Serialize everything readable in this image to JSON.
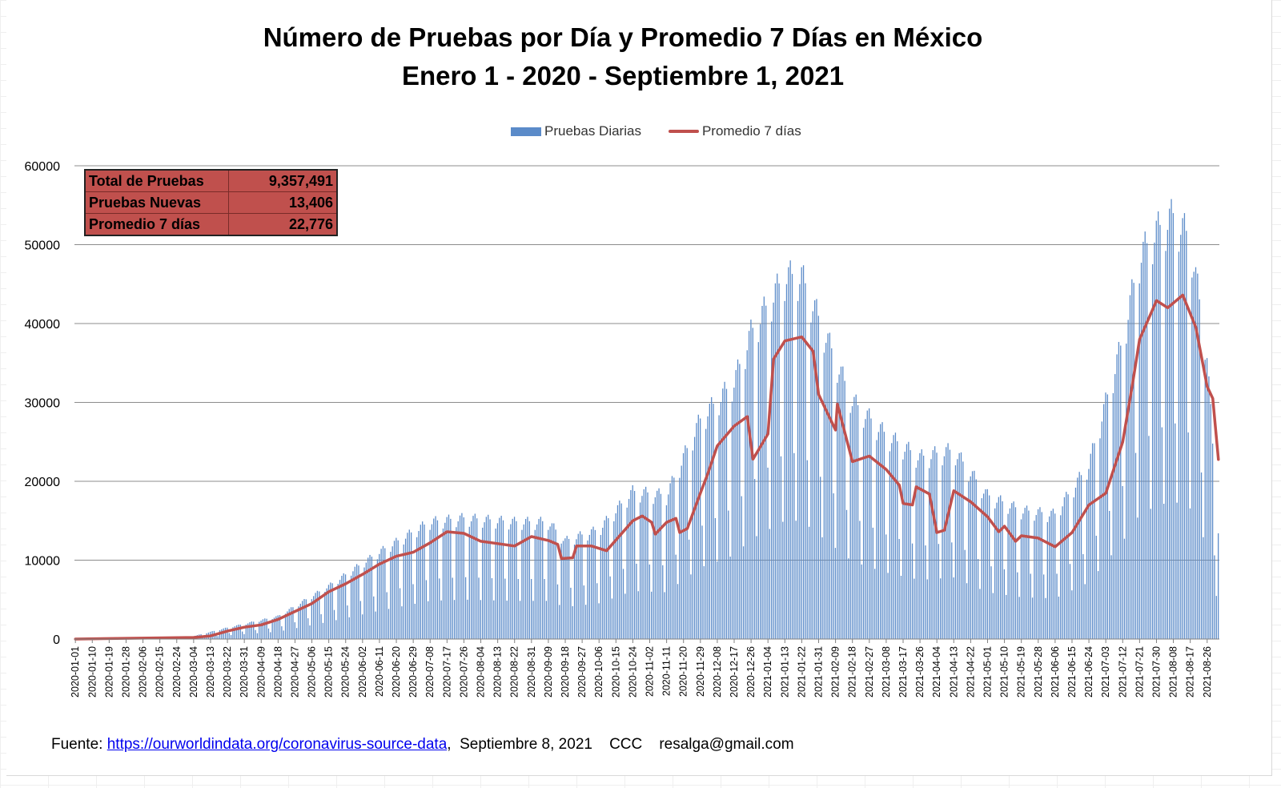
{
  "title_line1": "Número de Pruebas por Día  y Promedio 7 Días en México",
  "title_line2": "Enero 1 - 2020 - Septiembre 1, 2021",
  "legend": {
    "bars": "Pruebas Diarias",
    "line": "Promedio 7 días"
  },
  "summary": [
    {
      "label": "Total de Pruebas",
      "value": "9,357,491"
    },
    {
      "label": "Pruebas Nuevas",
      "value": "13,406"
    },
    {
      "label": "Promedio 7 días",
      "value": "22,776"
    }
  ],
  "footer": {
    "prefix": "Fuente:",
    "link": "https://ourworldindata.org/coronavirus-source-data",
    "rest": ",  Septiembre 8, 2021    CCC    resalga@gmail.com"
  },
  "colors": {
    "bars": "#5b8bc9",
    "line": "#c0504d",
    "summary_bg": "#c0504d"
  },
  "chart_data": {
    "type": "bar",
    "xlabel": "",
    "ylabel": "",
    "ylim": [
      0,
      60000
    ],
    "y_ticks": [
      0,
      10000,
      20000,
      30000,
      40000,
      50000,
      60000
    ],
    "grid": true,
    "legend_position": "top",
    "x_start": "2020-01-01",
    "x_end": "2021-09-01",
    "x_tick_labels": [
      "2020-01-01",
      "2020-01-10",
      "2020-01-19",
      "2020-01-28",
      "2020-02-06",
      "2020-02-15",
      "2020-02-24",
      "2020-03-04",
      "2020-03-13",
      "2020-03-22",
      "2020-03-31",
      "2020-04-09",
      "2020-04-18",
      "2020-04-27",
      "2020-05-06",
      "2020-05-15",
      "2020-05-24",
      "2020-06-02",
      "2020-06-11",
      "2020-06-20",
      "2020-06-29",
      "2020-07-08",
      "2020-07-17",
      "2020-07-26",
      "2020-08-04",
      "2020-08-13",
      "2020-08-22",
      "2020-08-31",
      "2020-09-09",
      "2020-09-18",
      "2020-09-27",
      "2020-10-06",
      "2020-10-15",
      "2020-10-24",
      "2020-11-02",
      "2020-11-11",
      "2020-11-20",
      "2020-11-29",
      "2020-12-08",
      "2020-12-17",
      "2020-12-26",
      "2021-01-04",
      "2021-01-13",
      "2021-01-22",
      "2021-01-31",
      "2021-02-09",
      "2021-02-18",
      "2021-02-27",
      "2021-03-08",
      "2021-03-17",
      "2021-03-26",
      "2021-04-04",
      "2021-04-13",
      "2021-04-22",
      "2021-05-01",
      "2021-05-10",
      "2021-05-19",
      "2021-05-28",
      "2021-06-06",
      "2021-06-15",
      "2021-06-24",
      "2021-07-03",
      "2021-07-12",
      "2021-07-21",
      "2021-07-30",
      "2021-08-08",
      "2021-08-17",
      "2021-08-26"
    ],
    "series": [
      {
        "name": "Pruebas Diarias",
        "type": "bar",
        "weekly_pattern": [
          1.0,
          1.05,
          1.1,
          1.12,
          1.08,
          0.55,
          0.35
        ],
        "approx_envelope": [
          {
            "date": "2020-01-01",
            "value": 0
          },
          {
            "date": "2020-03-01",
            "value": 200
          },
          {
            "date": "2020-03-22",
            "value": 1500
          },
          {
            "date": "2020-04-18",
            "value": 3000
          },
          {
            "date": "2020-05-15",
            "value": 7000
          },
          {
            "date": "2020-06-11",
            "value": 11500
          },
          {
            "date": "2020-07-08",
            "value": 15500
          },
          {
            "date": "2020-07-26",
            "value": 16000
          },
          {
            "date": "2020-08-22",
            "value": 15500
          },
          {
            "date": "2020-09-09",
            "value": 15500
          },
          {
            "date": "2020-09-18",
            "value": 13000
          },
          {
            "date": "2020-10-06",
            "value": 14500
          },
          {
            "date": "2020-10-24",
            "value": 19500
          },
          {
            "date": "2020-11-11",
            "value": 19000
          },
          {
            "date": "2020-11-29",
            "value": 29000
          },
          {
            "date": "2020-12-17",
            "value": 34000
          },
          {
            "date": "2020-12-26",
            "value": 40500
          },
          {
            "date": "2021-01-13",
            "value": 48000
          },
          {
            "date": "2021-01-22",
            "value": 48000
          },
          {
            "date": "2021-02-09",
            "value": 37000
          },
          {
            "date": "2021-02-18",
            "value": 31500
          },
          {
            "date": "2021-03-08",
            "value": 27000
          },
          {
            "date": "2021-03-26",
            "value": 24000
          },
          {
            "date": "2021-04-13",
            "value": 25000
          },
          {
            "date": "2021-05-01",
            "value": 19000
          },
          {
            "date": "2021-05-19",
            "value": 17000
          },
          {
            "date": "2021-06-06",
            "value": 16500
          },
          {
            "date": "2021-06-24",
            "value": 23000
          },
          {
            "date": "2021-07-12",
            "value": 39500
          },
          {
            "date": "2021-07-21",
            "value": 50500
          },
          {
            "date": "2021-07-30",
            "value": 54000
          },
          {
            "date": "2021-08-08",
            "value": 56000
          },
          {
            "date": "2021-08-17",
            "value": 53000
          },
          {
            "date": "2021-08-26",
            "value": 38000
          },
          {
            "date": "2021-09-01",
            "value": 13406
          }
        ]
      },
      {
        "name": "Promedio 7 días",
        "type": "line",
        "points": [
          {
            "date": "2020-01-01",
            "value": 0
          },
          {
            "date": "2020-03-04",
            "value": 200
          },
          {
            "date": "2020-03-13",
            "value": 400
          },
          {
            "date": "2020-03-22",
            "value": 1000
          },
          {
            "date": "2020-03-31",
            "value": 1500
          },
          {
            "date": "2020-04-09",
            "value": 1800
          },
          {
            "date": "2020-04-18",
            "value": 2500
          },
          {
            "date": "2020-04-27",
            "value": 3500
          },
          {
            "date": "2020-05-06",
            "value": 4500
          },
          {
            "date": "2020-05-15",
            "value": 6000
          },
          {
            "date": "2020-05-24",
            "value": 7000
          },
          {
            "date": "2020-06-02",
            "value": 8200
          },
          {
            "date": "2020-06-11",
            "value": 9500
          },
          {
            "date": "2020-06-20",
            "value": 10500
          },
          {
            "date": "2020-06-29",
            "value": 11000
          },
          {
            "date": "2020-07-08",
            "value": 12200
          },
          {
            "date": "2020-07-17",
            "value": 13600
          },
          {
            "date": "2020-07-26",
            "value": 13400
          },
          {
            "date": "2020-08-04",
            "value": 12400
          },
          {
            "date": "2020-08-13",
            "value": 12100
          },
          {
            "date": "2020-08-22",
            "value": 11800
          },
          {
            "date": "2020-08-31",
            "value": 13000
          },
          {
            "date": "2020-09-09",
            "value": 12500
          },
          {
            "date": "2020-09-14",
            "value": 12000
          },
          {
            "date": "2020-09-16",
            "value": 10200
          },
          {
            "date": "2020-09-22",
            "value": 10300
          },
          {
            "date": "2020-09-24",
            "value": 11800
          },
          {
            "date": "2020-10-02",
            "value": 11800
          },
          {
            "date": "2020-10-10",
            "value": 11200
          },
          {
            "date": "2020-10-24",
            "value": 15000
          },
          {
            "date": "2020-10-29",
            "value": 15600
          },
          {
            "date": "2020-11-03",
            "value": 14800
          },
          {
            "date": "2020-11-05",
            "value": 13300
          },
          {
            "date": "2020-11-11",
            "value": 14800
          },
          {
            "date": "2020-11-16",
            "value": 15300
          },
          {
            "date": "2020-11-18",
            "value": 13500
          },
          {
            "date": "2020-11-22",
            "value": 14000
          },
          {
            "date": "2020-11-29",
            "value": 18500
          },
          {
            "date": "2020-12-03",
            "value": 21000
          },
          {
            "date": "2020-12-08",
            "value": 24500
          },
          {
            "date": "2020-12-17",
            "value": 27000
          },
          {
            "date": "2020-12-24",
            "value": 28200
          },
          {
            "date": "2020-12-27",
            "value": 22800
          },
          {
            "date": "2021-01-04",
            "value": 26000
          },
          {
            "date": "2021-01-07",
            "value": 35500
          },
          {
            "date": "2021-01-13",
            "value": 37800
          },
          {
            "date": "2021-01-22",
            "value": 38300
          },
          {
            "date": "2021-01-28",
            "value": 36500
          },
          {
            "date": "2021-01-31",
            "value": 31000
          },
          {
            "date": "2021-02-09",
            "value": 26500
          },
          {
            "date": "2021-02-10",
            "value": 29800
          },
          {
            "date": "2021-02-18",
            "value": 22500
          },
          {
            "date": "2021-02-27",
            "value": 23200
          },
          {
            "date": "2021-03-08",
            "value": 21500
          },
          {
            "date": "2021-03-15",
            "value": 19500
          },
          {
            "date": "2021-03-17",
            "value": 17200
          },
          {
            "date": "2021-03-22",
            "value": 17000
          },
          {
            "date": "2021-03-24",
            "value": 19300
          },
          {
            "date": "2021-03-31",
            "value": 18400
          },
          {
            "date": "2021-04-04",
            "value": 13500
          },
          {
            "date": "2021-04-08",
            "value": 13800
          },
          {
            "date": "2021-04-13",
            "value": 18800
          },
          {
            "date": "2021-04-22",
            "value": 17400
          },
          {
            "date": "2021-05-01",
            "value": 15500
          },
          {
            "date": "2021-05-07",
            "value": 13600
          },
          {
            "date": "2021-05-10",
            "value": 14300
          },
          {
            "date": "2021-05-16",
            "value": 12400
          },
          {
            "date": "2021-05-19",
            "value": 13100
          },
          {
            "date": "2021-05-28",
            "value": 12800
          },
          {
            "date": "2021-06-06",
            "value": 11700
          },
          {
            "date": "2021-06-15",
            "value": 13500
          },
          {
            "date": "2021-06-24",
            "value": 17000
          },
          {
            "date": "2021-07-03",
            "value": 18500
          },
          {
            "date": "2021-07-12",
            "value": 25000
          },
          {
            "date": "2021-07-17",
            "value": 32000
          },
          {
            "date": "2021-07-21",
            "value": 38000
          },
          {
            "date": "2021-07-30",
            "value": 42900
          },
          {
            "date": "2021-08-05",
            "value": 42000
          },
          {
            "date": "2021-08-13",
            "value": 43600
          },
          {
            "date": "2021-08-20",
            "value": 39500
          },
          {
            "date": "2021-08-26",
            "value": 32000
          },
          {
            "date": "2021-08-29",
            "value": 30500
          },
          {
            "date": "2021-09-01",
            "value": 22776
          }
        ]
      }
    ]
  }
}
